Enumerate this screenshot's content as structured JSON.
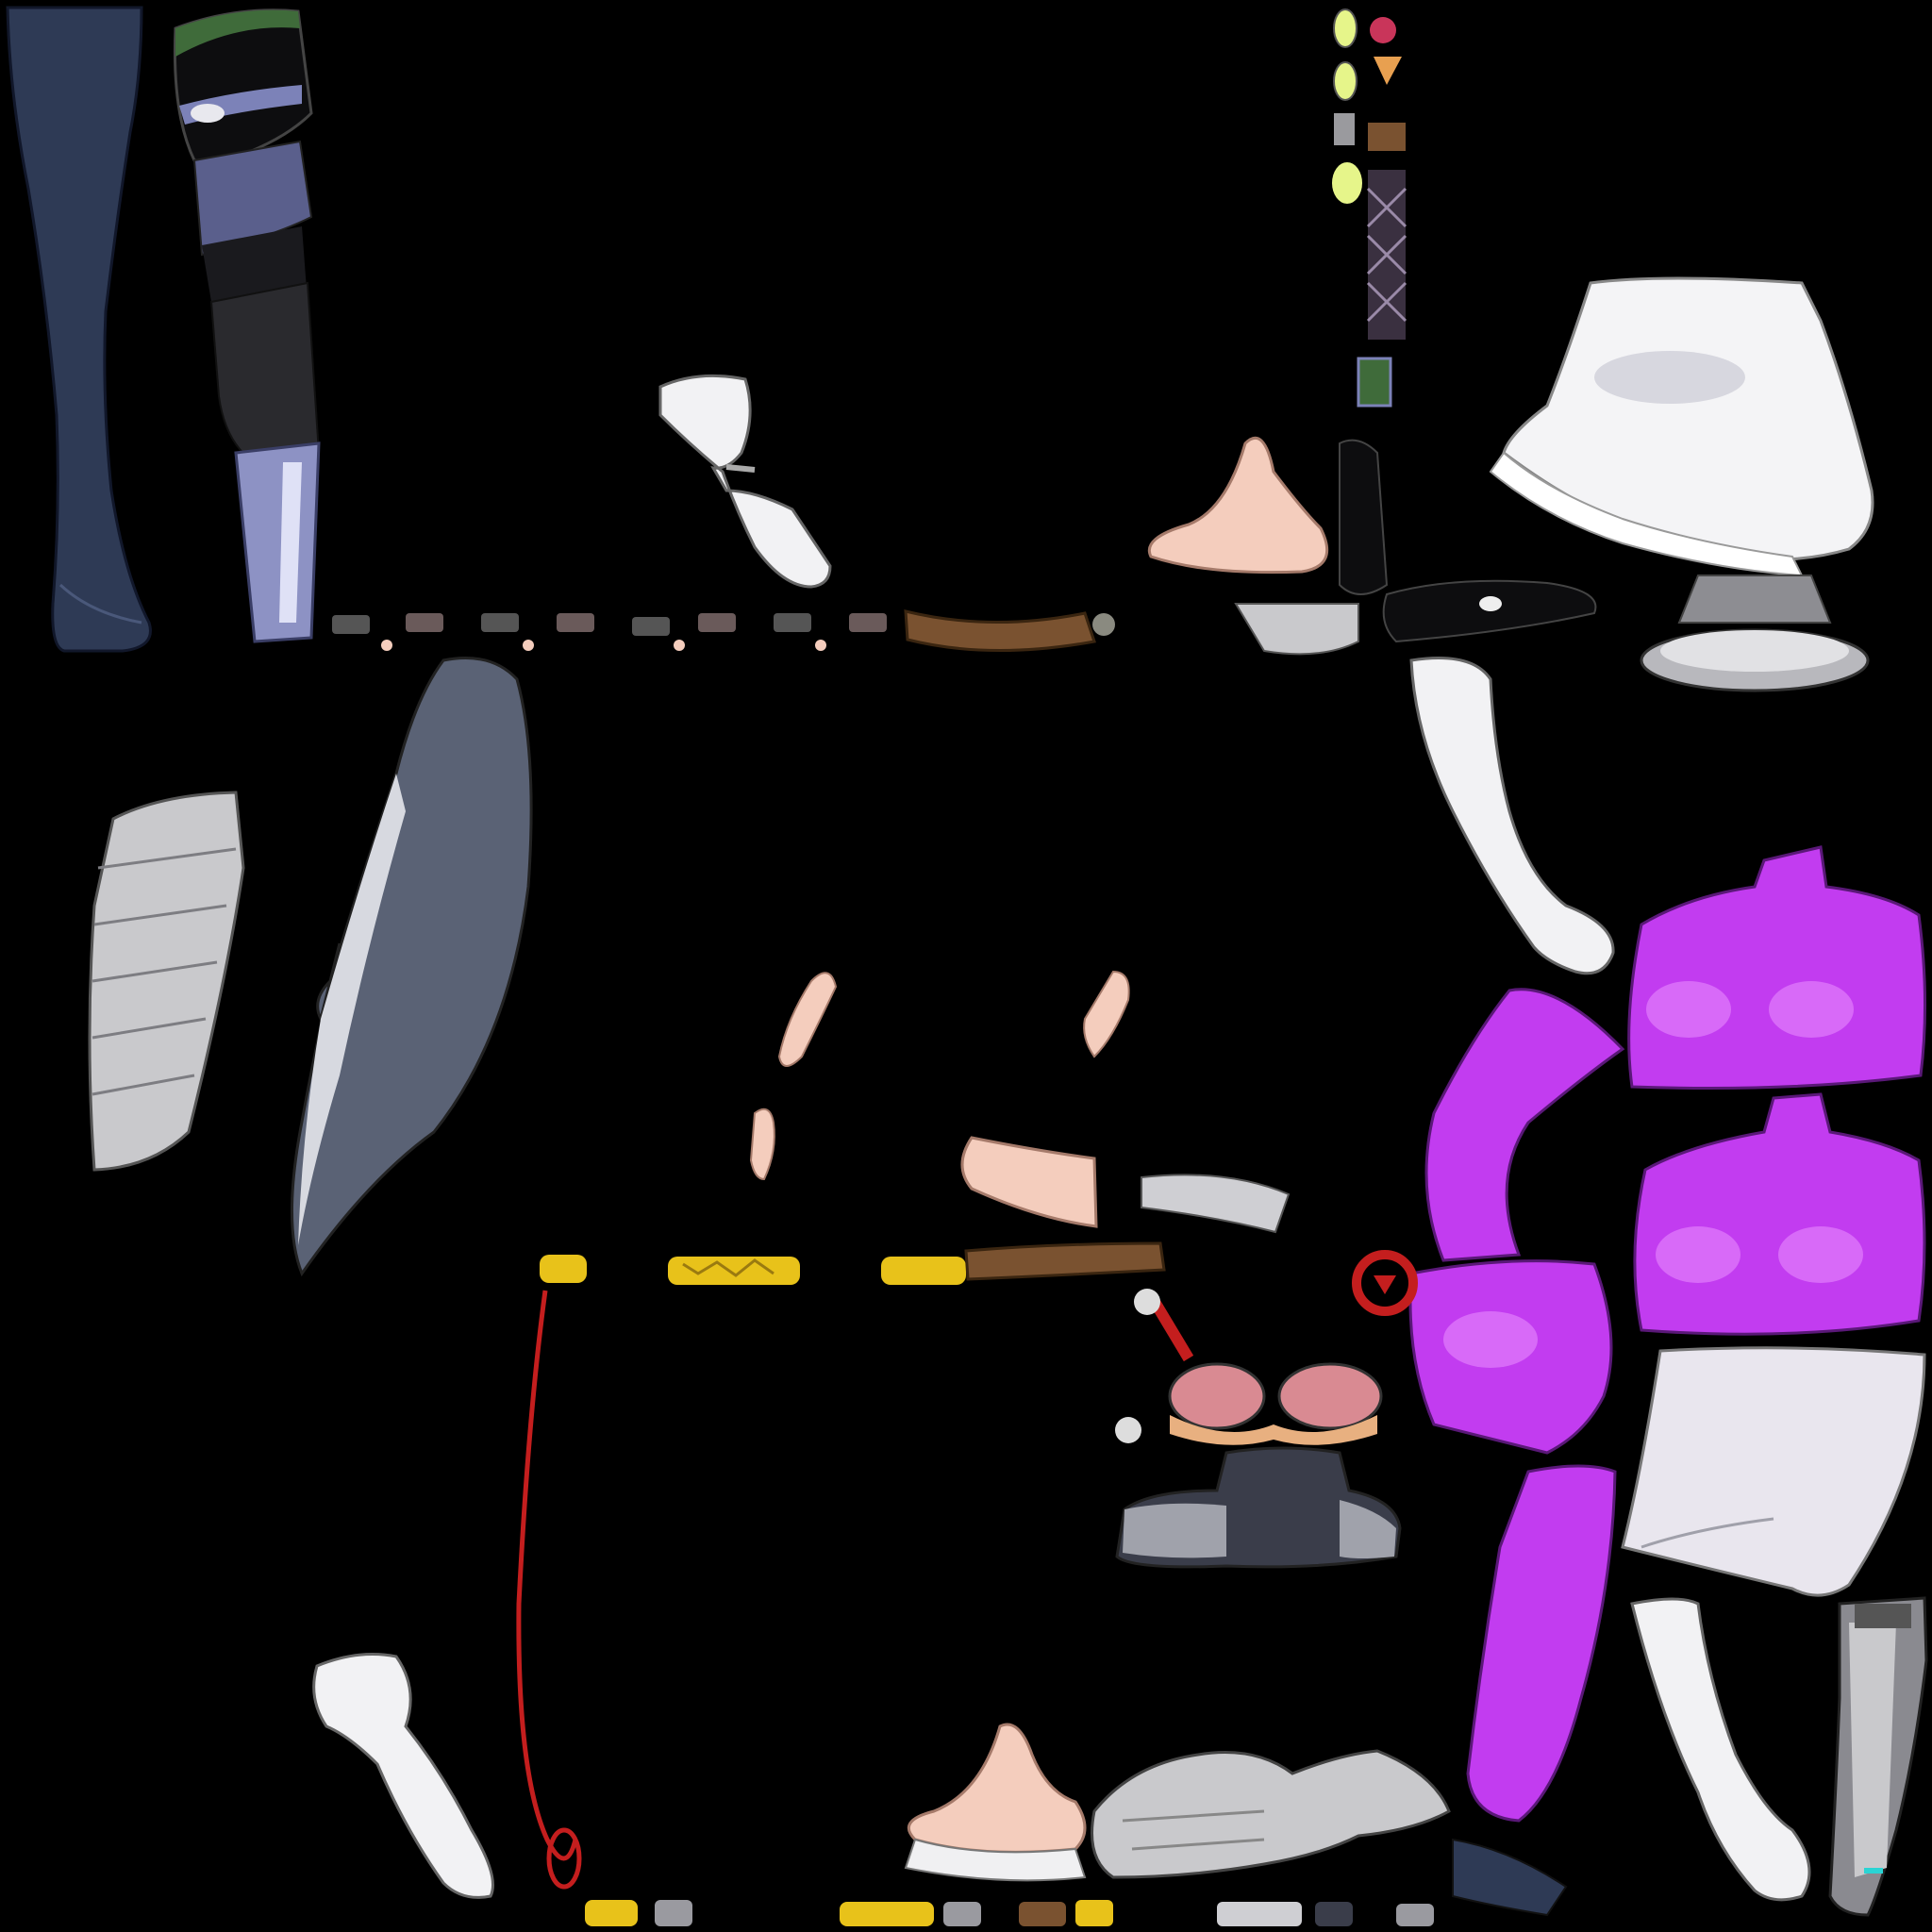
{
  "canvas": {
    "background": "#000000"
  },
  "palette": {
    "navy_stocking": "#2e3a55",
    "black_latex": "#0d0d0f",
    "periwinkle": "#7c82b8",
    "green_band": "#3f6b3a",
    "white_glove": "#f2f2f4",
    "grey_armor": "#c9c9cc",
    "slate_panel": "#5a6275",
    "skin": "#f4cdbd",
    "purple_suit": "#c23cf0",
    "gold_trim": "#e8c21a",
    "leather_brown": "#7a5230",
    "red_cord": "#c41e1e",
    "lime_gem": "#e6f58a",
    "white_skirt": "#e9e6ee"
  },
  "parts": [
    {
      "name": "navy-stocking-leg"
    },
    {
      "name": "black-latex-thigh-boot"
    },
    {
      "name": "white-ruffle-skirt"
    },
    {
      "name": "grey-pedestal-base"
    },
    {
      "name": "white-glove-hand-upper"
    },
    {
      "name": "white-long-glove-arm"
    },
    {
      "name": "skin-foot-top"
    },
    {
      "name": "black-latex-shoulder"
    },
    {
      "name": "strap-buckle-row"
    },
    {
      "name": "braided-leather-strap"
    },
    {
      "name": "gem-ornament-column"
    },
    {
      "name": "ribbed-armor-plate"
    },
    {
      "name": "slate-blade-panel"
    },
    {
      "name": "purple-torso-front"
    },
    {
      "name": "purple-torso-back"
    },
    {
      "name": "purple-sleeve-upper"
    },
    {
      "name": "purple-hip-piece"
    },
    {
      "name": "purple-sleeve-lower"
    },
    {
      "name": "white-wrap-skirt"
    },
    {
      "name": "skin-ear-left"
    },
    {
      "name": "skin-ear-right"
    },
    {
      "name": "skin-forearm"
    },
    {
      "name": "silver-band"
    },
    {
      "name": "gold-trim-strips"
    },
    {
      "name": "leather-band"
    },
    {
      "name": "red-ring-emblem"
    },
    {
      "name": "red-cord-loop"
    },
    {
      "name": "pink-bra-cups"
    },
    {
      "name": "dark-collar-jacket"
    },
    {
      "name": "white-fist-arm"
    },
    {
      "name": "skin-foot-bottom"
    },
    {
      "name": "armored-boot-greave"
    },
    {
      "name": "grey-cyber-boot"
    },
    {
      "name": "white-arm-lower-right"
    },
    {
      "name": "bottom-trim-row"
    }
  ]
}
